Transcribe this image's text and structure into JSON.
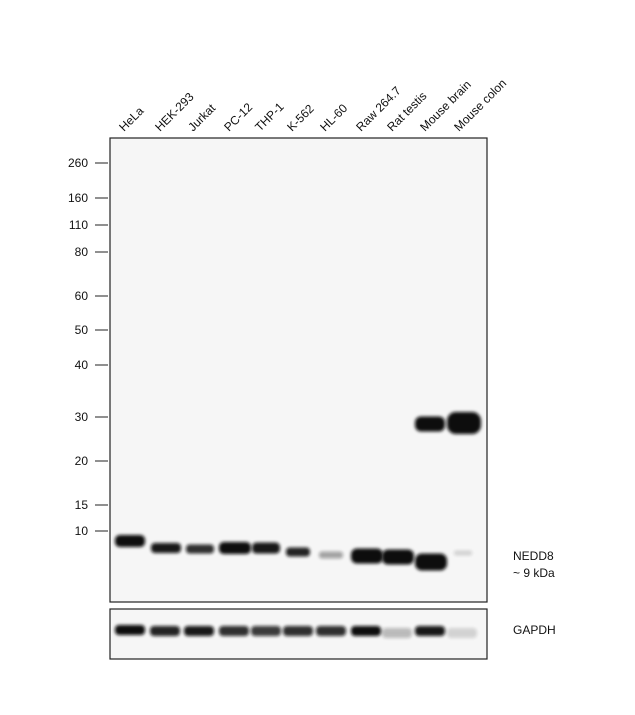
{
  "lanes": [
    "HeLa",
    "HEK-293",
    "Jurkat",
    "PC-12",
    "THP-1",
    "K-562",
    "HL-60",
    "Raw 264.7",
    "Rat testis",
    "Mouse brain",
    "Mouse colon"
  ],
  "markers": [
    260,
    160,
    110,
    80,
    60,
    50,
    40,
    30,
    20,
    15,
    10
  ],
  "labels": {
    "target": "NEDD8",
    "size": "~ 9 kDa",
    "control": "GAPDH"
  }
}
